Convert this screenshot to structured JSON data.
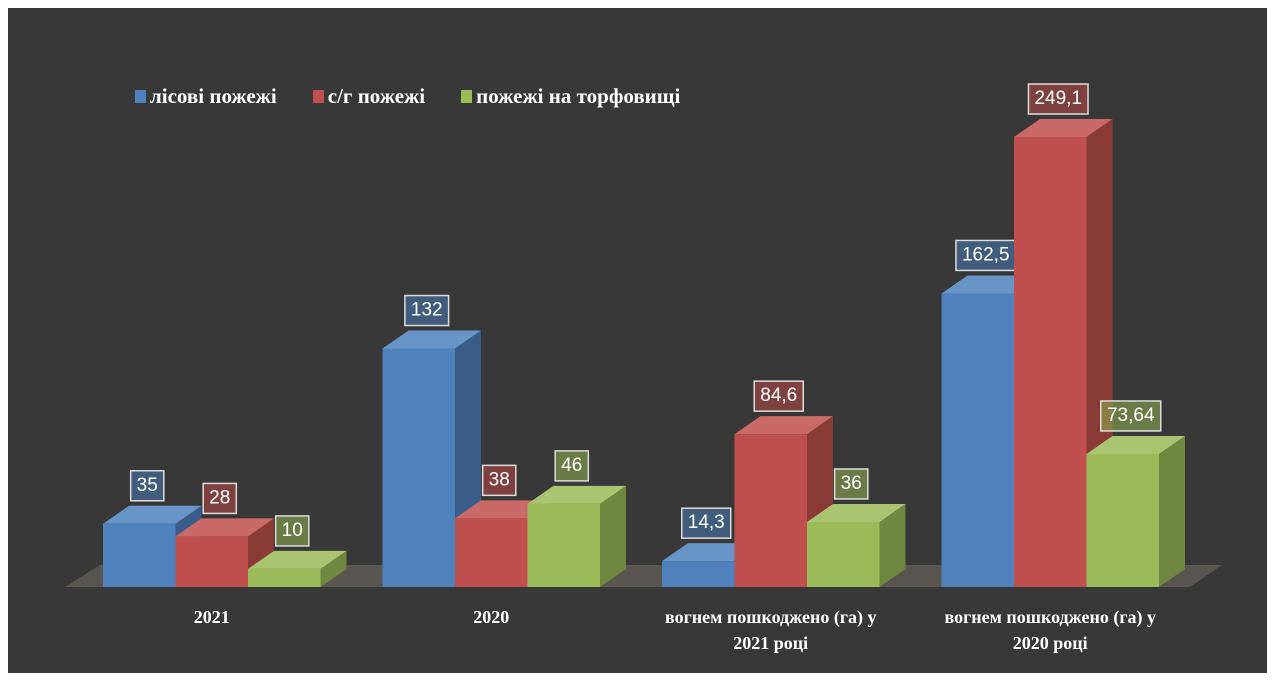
{
  "chart_data": {
    "type": "bar",
    "categories": [
      "2021",
      "2020",
      "вогнем пошкоджено (га) у 2021 році",
      "вогнем пошкоджено (га) у 2020 році"
    ],
    "series": [
      {
        "name": "лісові пожежі",
        "color": "#4f81bd",
        "values": [
          35,
          132,
          14.3,
          162.5
        ],
        "value_labels": [
          "35",
          "132",
          "14,3",
          "162,5"
        ]
      },
      {
        "name": "с/г пожежі",
        "color": "#c0504d",
        "values": [
          28,
          38,
          84.6,
          249.1
        ],
        "value_labels": [
          "28",
          "38",
          "84,6",
          "249,1"
        ]
      },
      {
        "name": "пожежі на торфовищі",
        "color": "#9bbb59",
        "values": [
          10,
          46,
          36,
          73.64
        ],
        "value_labels": [
          "10",
          "46",
          "36",
          "73,64"
        ]
      }
    ],
    "legend": "top-left"
  }
}
